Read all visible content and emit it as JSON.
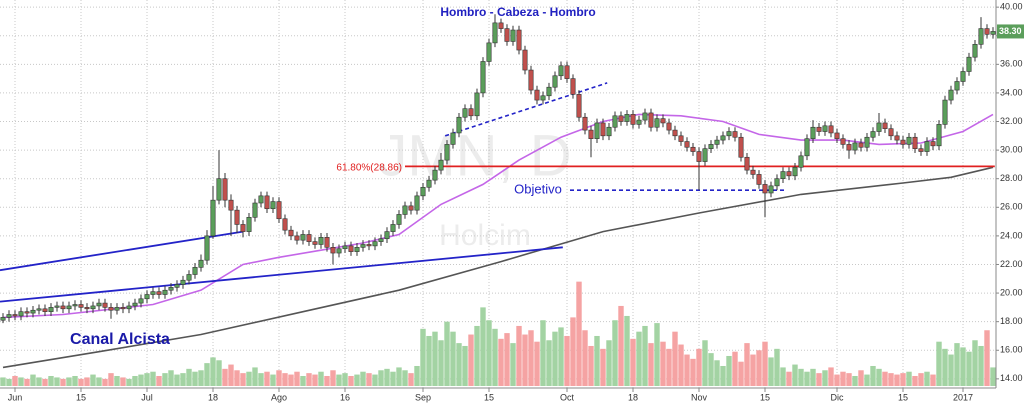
{
  "chart_data": {
    "type": "candlestick",
    "title": "Hombro - Cabeza - Hombro",
    "annotations": {
      "channel": "Canal Alcista",
      "target": "Objetivo",
      "fib_label": "61.80%(28.86)",
      "watermark_symbol": "JMN, D",
      "watermark_name": "Holcim"
    },
    "xlim": [
      -0.5,
      165.5
    ],
    "xticks": [
      {
        "value": 2,
        "label": "Jun"
      },
      {
        "value": 13,
        "label": "15"
      },
      {
        "value": 24,
        "label": "Jul"
      },
      {
        "value": 35,
        "label": "18"
      },
      {
        "value": 46,
        "label": "Ago"
      },
      {
        "value": 57,
        "label": "16"
      },
      {
        "value": 70,
        "label": "Sep"
      },
      {
        "value": 81,
        "label": "15"
      },
      {
        "value": 94,
        "label": "Oct"
      },
      {
        "value": 105,
        "label": "18"
      },
      {
        "value": 116,
        "label": "Nov"
      },
      {
        "value": 127,
        "label": "15"
      },
      {
        "value": 139,
        "label": "Dic"
      },
      {
        "value": 150,
        "label": "15"
      },
      {
        "value": 160,
        "label": "2017"
      }
    ],
    "ylim": [
      13.5,
      40.5
    ],
    "yticks": [
      {
        "value": 14,
        "label": "14.00"
      },
      {
        "value": 16,
        "label": "16.00"
      },
      {
        "value": 18,
        "label": "18.00"
      },
      {
        "value": 20,
        "label": "20.00"
      },
      {
        "value": 22,
        "label": "22.00"
      },
      {
        "value": 24,
        "label": "24.00"
      },
      {
        "value": 26,
        "label": "26.00"
      },
      {
        "value": 28,
        "label": "28.00"
      },
      {
        "value": 30,
        "label": "30.00"
      },
      {
        "value": 32,
        "label": "32.00"
      },
      {
        "value": 34,
        "label": "34.00"
      },
      {
        "value": 36,
        "label": "36.00"
      },
      {
        "value": 38,
        "label": "38.00"
      },
      {
        "value": 40,
        "label": "40.00"
      }
    ],
    "grid": true,
    "up_color": "#5b9e5b",
    "down_color": "#c0504d",
    "volume_up_color": "#a3d3a3",
    "volume_down_color": "#f5a3a3",
    "last_price": {
      "value": 38.3,
      "label": "38.30"
    },
    "open": [
      18.1,
      18.3,
      18.5,
      18.4,
      18.7,
      18.6,
      18.8,
      18.9,
      18.7,
      19.0,
      19.1,
      18.9,
      19.1,
      19.2,
      19.0,
      18.9,
      19.1,
      19.3,
      19.0,
      18.8,
      19.0,
      18.9,
      19.1,
      19.3,
      19.6,
      19.9,
      20.1,
      19.9,
      20.2,
      20.4,
      20.6,
      20.9,
      21.3,
      21.8,
      22.3,
      24.0,
      26.5,
      28.0,
      26.5,
      25.8,
      24.8,
      24.3,
      25.3,
      26.3,
      26.8,
      25.9,
      26.4,
      25.2,
      24.4,
      24.0,
      23.7,
      24.1,
      23.6,
      23.4,
      23.9,
      23.2,
      22.8,
      23.1,
      23.3,
      22.9,
      23.2,
      23.4,
      23.3,
      23.6,
      23.8,
      24.3,
      24.8,
      25.5,
      26.1,
      25.8,
      26.8,
      27.4,
      27.9,
      28.6,
      29.3,
      30.4,
      31.2,
      32.3,
      32.9,
      32.4,
      34.0,
      36.2,
      37.5,
      38.9,
      38.5,
      37.6,
      38.4,
      37.0,
      35.6,
      34.2,
      33.5,
      33.8,
      34.4,
      35.2,
      35.9,
      35.0,
      33.9,
      32.3,
      31.4,
      30.8,
      31.9,
      31.0,
      31.6,
      32.4,
      32.0,
      32.5,
      31.8,
      32.1,
      32.6,
      31.6,
      32.2,
      31.9,
      31.4,
      31.0,
      30.6,
      30.2,
      29.9,
      29.2,
      30.1,
      30.4,
      30.7,
      31.0,
      31.3,
      30.9,
      29.5,
      28.6,
      28.3,
      27.6,
      27.0,
      27.5,
      28.0,
      28.5,
      28.2,
      28.8,
      29.6,
      30.8,
      31.6,
      31.3,
      31.7,
      31.2,
      30.8,
      30.4,
      30.0,
      30.5,
      30.2,
      30.9,
      31.3,
      31.9,
      31.5,
      31.0,
      30.7,
      30.4,
      30.9,
      30.1,
      29.9,
      30.6,
      30.3,
      31.8,
      33.5,
      34.2,
      34.8,
      35.5,
      36.5,
      37.4,
      38.5,
      38.1
    ],
    "high": [
      18.6,
      18.8,
      18.8,
      19.0,
      19.0,
      19.1,
      19.2,
      19.2,
      19.3,
      19.4,
      19.4,
      19.4,
      19.5,
      19.5,
      19.3,
      19.4,
      19.6,
      19.6,
      19.3,
      19.3,
      19.3,
      19.4,
      19.6,
      19.9,
      20.2,
      20.4,
      20.4,
      20.5,
      20.7,
      20.9,
      21.2,
      21.6,
      22.1,
      22.7,
      24.4,
      27.5,
      30.0,
      28.4,
      26.9,
      26.1,
      25.1,
      25.6,
      26.6,
      27.1,
      27.1,
      26.7,
      26.7,
      25.5,
      24.7,
      24.3,
      24.4,
      24.4,
      23.9,
      24.2,
      24.2,
      23.5,
      23.4,
      23.6,
      23.6,
      23.5,
      23.7,
      23.7,
      23.9,
      24.1,
      24.6,
      25.1,
      25.8,
      26.4,
      26.4,
      27.1,
      27.7,
      28.2,
      28.9,
      29.8,
      30.7,
      31.5,
      32.6,
      33.2,
      33.2,
      34.3,
      36.5,
      37.8,
      39.5,
      39.2,
      38.8,
      38.7,
      38.7,
      37.3,
      35.9,
      34.5,
      34.1,
      34.7,
      35.5,
      36.2,
      36.2,
      35.3,
      34.2,
      32.6,
      31.7,
      32.2,
      32.2,
      31.9,
      32.7,
      32.7,
      32.8,
      32.8,
      32.4,
      32.9,
      32.9,
      32.5,
      32.5,
      32.2,
      31.7,
      31.3,
      30.9,
      30.5,
      30.2,
      30.4,
      30.7,
      31.0,
      31.3,
      31.6,
      31.6,
      31.2,
      29.8,
      28.9,
      28.6,
      27.9,
      27.8,
      28.3,
      28.8,
      28.8,
      29.1,
      29.9,
      31.1,
      32.1,
      31.9,
      32.0,
      32.0,
      31.5,
      31.1,
      30.7,
      30.8,
      30.8,
      31.2,
      31.6,
      32.6,
      32.2,
      31.8,
      31.3,
      31.0,
      31.2,
      31.2,
      30.4,
      30.9,
      30.9,
      32.1,
      33.8,
      34.5,
      35.1,
      35.8,
      36.8,
      37.7,
      39.3,
      38.8,
      38.6
    ],
    "low": [
      17.9,
      18.0,
      18.1,
      18.1,
      18.3,
      18.3,
      18.5,
      18.4,
      18.4,
      18.7,
      18.6,
      18.6,
      18.8,
      18.7,
      18.6,
      18.6,
      18.8,
      18.7,
      18.2,
      18.5,
      18.6,
      18.6,
      18.8,
      19.0,
      19.3,
      19.6,
      19.6,
      19.6,
      19.9,
      20.1,
      20.3,
      20.6,
      21.0,
      21.5,
      22.0,
      23.8,
      26.2,
      26.0,
      24.0,
      24.2,
      23.9,
      24.0,
      25.0,
      26.0,
      25.6,
      25.6,
      24.9,
      24.1,
      23.7,
      23.4,
      23.4,
      23.3,
      23.1,
      23.1,
      22.9,
      22.0,
      22.5,
      22.8,
      22.6,
      22.6,
      22.9,
      23.0,
      23.0,
      23.3,
      23.5,
      24.0,
      24.5,
      25.2,
      25.5,
      25.5,
      26.5,
      27.1,
      27.6,
      28.3,
      29.0,
      30.1,
      30.9,
      32.0,
      32.1,
      32.1,
      33.7,
      35.9,
      37.2,
      38.2,
      37.3,
      37.3,
      36.7,
      35.3,
      33.9,
      33.2,
      33.2,
      33.5,
      34.1,
      34.9,
      34.7,
      33.6,
      32.0,
      31.1,
      29.5,
      30.5,
      30.7,
      30.7,
      31.3,
      31.7,
      31.7,
      31.5,
      31.5,
      31.8,
      31.3,
      31.3,
      31.6,
      31.1,
      30.7,
      30.3,
      29.9,
      29.6,
      27.2,
      28.9,
      29.8,
      30.1,
      30.4,
      30.7,
      30.6,
      29.2,
      28.3,
      28.0,
      27.3,
      25.3,
      26.7,
      27.2,
      27.7,
      27.9,
      27.9,
      28.5,
      29.3,
      30.5,
      31.0,
      31.0,
      30.9,
      30.5,
      30.1,
      29.4,
      29.7,
      29.9,
      29.9,
      30.6,
      31.0,
      31.2,
      30.7,
      30.4,
      30.1,
      30.1,
      29.8,
      29.6,
      29.6,
      30.0,
      30.0,
      31.5,
      33.2,
      33.9,
      34.5,
      35.2,
      36.2,
      37.1,
      37.8,
      37.8
    ],
    "close": [
      18.3,
      18.5,
      18.4,
      18.7,
      18.6,
      18.8,
      18.9,
      18.7,
      19.0,
      19.1,
      18.9,
      19.1,
      19.2,
      19.0,
      18.9,
      19.1,
      19.3,
      19.0,
      18.8,
      19.0,
      18.9,
      19.1,
      19.3,
      19.6,
      19.9,
      20.1,
      19.9,
      20.2,
      20.4,
      20.6,
      20.9,
      21.3,
      21.8,
      22.3,
      24.0,
      26.5,
      28.0,
      26.5,
      25.8,
      24.8,
      24.3,
      25.3,
      26.3,
      26.8,
      25.9,
      26.4,
      25.2,
      24.4,
      24.0,
      23.7,
      24.1,
      23.6,
      23.4,
      23.9,
      23.2,
      22.8,
      23.1,
      23.3,
      22.9,
      23.2,
      23.4,
      23.3,
      23.6,
      23.8,
      24.3,
      24.8,
      25.5,
      26.1,
      25.8,
      26.8,
      27.4,
      27.9,
      28.6,
      29.3,
      30.4,
      31.2,
      32.3,
      32.9,
      32.4,
      34.0,
      36.2,
      37.5,
      38.9,
      38.5,
      37.6,
      38.4,
      37.0,
      35.6,
      34.2,
      33.5,
      33.8,
      34.4,
      35.2,
      35.9,
      35.0,
      33.9,
      32.3,
      31.4,
      30.8,
      31.9,
      31.0,
      31.6,
      32.4,
      32.0,
      32.5,
      31.8,
      32.1,
      32.6,
      31.6,
      32.2,
      31.9,
      31.4,
      31.0,
      30.6,
      30.2,
      29.9,
      29.2,
      30.1,
      30.4,
      30.7,
      31.0,
      31.3,
      30.9,
      29.5,
      28.6,
      28.3,
      27.6,
      27.0,
      27.5,
      28.0,
      28.5,
      28.2,
      28.8,
      29.6,
      30.8,
      31.6,
      31.3,
      31.7,
      31.2,
      30.8,
      30.4,
      30.0,
      30.5,
      30.2,
      30.9,
      31.3,
      31.9,
      31.5,
      31.0,
      30.7,
      30.4,
      30.9,
      30.1,
      29.9,
      30.6,
      30.3,
      31.8,
      33.5,
      34.2,
      34.8,
      35.5,
      36.5,
      37.4,
      38.5,
      38.1,
      38.3
    ],
    "volume": [
      0.6,
      0.5,
      0.7,
      0.6,
      0.5,
      0.8,
      0.6,
      0.5,
      0.7,
      0.6,
      0.5,
      0.6,
      0.7,
      0.5,
      0.6,
      0.8,
      0.6,
      0.5,
      0.9,
      0.7,
      0.6,
      0.5,
      0.7,
      0.8,
      0.9,
      1.0,
      0.7,
      0.9,
      1.1,
      0.8,
      0.9,
      1.2,
      1.0,
      1.1,
      1.6,
      2.0,
      1.8,
      1.2,
      1.5,
      1.1,
      0.9,
      1.0,
      1.3,
      0.9,
      1.0,
      0.8,
      1.1,
      0.9,
      0.8,
      1.0,
      0.7,
      0.9,
      0.8,
      1.0,
      0.7,
      1.1,
      0.8,
      0.9,
      0.7,
      0.8,
      1.0,
      0.9,
      0.8,
      1.1,
      1.2,
      1.0,
      1.3,
      1.1,
      0.9,
      1.4,
      4.0,
      3.5,
      3.8,
      3.2,
      4.5,
      3.8,
      3.0,
      2.8,
      3.6,
      4.2,
      5.5,
      4.6,
      4.0,
      3.3,
      3.7,
      3.0,
      4.2,
      3.6,
      3.9,
      3.1,
      4.6,
      3.2,
      3.8,
      4.1,
      3.5,
      4.8,
      7.3,
      3.9,
      2.8,
      3.5,
      2.6,
      3.2,
      4.6,
      5.6,
      4.9,
      3.3,
      3.8,
      4.2,
      3.0,
      4.4,
      3.1,
      2.6,
      3.8,
      2.9,
      2.2,
      1.9,
      2.6,
      3.2,
      2.3,
      1.8,
      1.4,
      2.1,
      2.4,
      1.7,
      3.0,
      2.2,
      2.5,
      3.1,
      2.0,
      2.6,
      1.3,
      1.0,
      1.5,
      1.2,
      1.0,
      1.2,
      0.9,
      1.1,
      1.3,
      0.8,
      1.0,
      0.9,
      0.7,
      1.1,
      0.8,
      1.4,
      1.2,
      1.0,
      0.9,
      0.8,
      0.9,
      1.0,
      0.7,
      0.9,
      1.0,
      0.8,
      3.1,
      2.6,
      2.2,
      3.0,
      2.7,
      2.4,
      3.2,
      2.8,
      3.9,
      1.3
    ],
    "moving_averages": [
      {
        "color": "#c466e8",
        "x": [
          0,
          10,
          25,
          33,
          40,
          46,
          53,
          60,
          66,
          73,
          80,
          86,
          93,
          100,
          106,
          113,
          120,
          126,
          133,
          140,
          146,
          153,
          160,
          165
        ],
        "values": [
          18.3,
          18.5,
          19.2,
          20.2,
          22.0,
          22.5,
          23.0,
          23.5,
          24.1,
          26.2,
          27.6,
          29.3,
          30.9,
          32.0,
          32.5,
          32.4,
          32.0,
          31.1,
          30.7,
          30.7,
          30.4,
          30.5,
          31.3,
          32.5
        ]
      },
      {
        "color": "#555555",
        "x": [
          0,
          16,
          33,
          50,
          66,
          83,
          100,
          116,
          133,
          150,
          158,
          165
        ],
        "values": [
          14.8,
          15.9,
          17.1,
          18.7,
          20.2,
          22.2,
          24.3,
          25.6,
          26.9,
          27.7,
          28.1,
          28.8
        ]
      }
    ],
    "trend_lines": [
      {
        "color": "#2323c8",
        "dashed": false,
        "x": [
          -0.5,
          40
        ],
        "values": [
          21.6,
          24.3
        ]
      },
      {
        "color": "#2323c8",
        "dashed": false,
        "x": [
          -0.5,
          93.3
        ],
        "values": [
          19.4,
          23.2
        ]
      },
      {
        "color": "#2323c8",
        "dashed": true,
        "x": [
          73.7,
          100.7
        ],
        "values": [
          31.0,
          34.7
        ]
      },
      {
        "color": "#2323c8",
        "dashed": true,
        "x": [
          94.5,
          130.3
        ],
        "values": [
          27.2,
          27.2
        ]
      },
      {
        "color": "#e02020",
        "dashed": false,
        "x": [
          67,
          165.3
        ],
        "values": [
          28.86,
          28.86
        ]
      }
    ]
  }
}
